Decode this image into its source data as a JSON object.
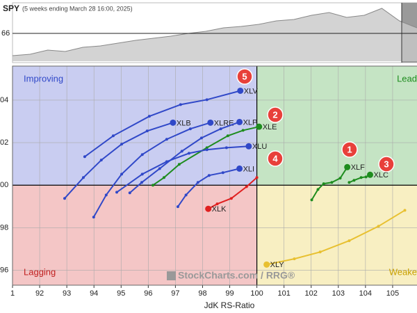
{
  "chart_data": [
    {
      "type": "area",
      "title": "SPY",
      "subtitle": "(5 weeks ending March 28 16:00, 2025)",
      "values": [
        550,
        551,
        554,
        553,
        556,
        557,
        559,
        561,
        562.5,
        564,
        566,
        567.5,
        570,
        571,
        572.5,
        575,
        576,
        579,
        581,
        577.5,
        579,
        584,
        575,
        570
      ],
      "color": "#c8c8c8",
      "ylim": [
        546,
        586
      ],
      "yticks": [
        {
          "value": 566,
          "label": "66"
        }
      ]
    },
    {
      "type": "rrg",
      "xlabel": "JdK RS-Ratio",
      "quadrants": [
        "Improving",
        "Lead",
        "Lagging",
        "Weake"
      ],
      "watermark": "StockCharts.com / RRG®",
      "annotations": [
        "5",
        "2",
        "4",
        "1",
        "3"
      ],
      "xlim": [
        91,
        106
      ],
      "ylim": [
        95.3,
        105.6
      ],
      "xticks": [
        {
          "value": 91,
          "label": "1"
        },
        92,
        93,
        94,
        95,
        96,
        97,
        98,
        99,
        100,
        101,
        102,
        103,
        104,
        105,
        {
          "value": 106,
          "label": "1"
        }
      ],
      "yticks": [
        96,
        98,
        {
          "value": 100,
          "label": "00"
        },
        {
          "value": 102,
          "label": "02"
        },
        {
          "value": 104,
          "label": "04"
        }
      ],
      "grid": true,
      "series": [
        {
          "name": "XLV",
          "color": "#3048c8",
          "x": [
            93.66,
            94.71,
            96.04,
            97.19,
            98.16,
            99.39
          ],
          "values": [
            101.34,
            102.32,
            103.24,
            103.79,
            104.02,
            104.44
          ]
        },
        {
          "name": "XLB",
          "color": "#3048c8",
          "x": [
            92.92,
            93.61,
            94.27,
            95.02,
            95.96,
            96.91
          ],
          "values": [
            99.38,
            100.36,
            101.18,
            101.93,
            102.55,
            102.94
          ]
        },
        {
          "name": "XLRE",
          "color": "#3048c8",
          "x": [
            93.99,
            94.45,
            95.02,
            95.78,
            96.68,
            97.55,
            98.29
          ],
          "values": [
            98.5,
            99.54,
            100.52,
            101.44,
            102.16,
            102.65,
            102.94
          ]
        },
        {
          "name": "XLP",
          "color": "#3048c8",
          "x": [
            95.32,
            95.76,
            96.42,
            97.24,
            97.96,
            98.67,
            99.36
          ],
          "values": [
            99.64,
            100.13,
            100.78,
            101.6,
            102.22,
            102.65,
            102.97
          ]
        },
        {
          "name": "XLE",
          "color": "#1e8c1e",
          "x": [
            96.17,
            96.58,
            97.14,
            98.16,
            98.93,
            99.49,
            100.08
          ],
          "values": [
            100,
            100.36,
            100.98,
            101.76,
            102.32,
            102.58,
            102.75
          ]
        },
        {
          "name": "XLU",
          "color": "#3048c8",
          "x": [
            94.84,
            95.78,
            96.68,
            97.5,
            98.16,
            98.88,
            99.7
          ],
          "values": [
            99.67,
            100.52,
            101.11,
            101.5,
            101.67,
            101.76,
            101.83
          ]
        },
        {
          "name": "XLI",
          "color": "#3048c8",
          "x": [
            97.09,
            97.39,
            97.83,
            98.24,
            98.75,
            99.36
          ],
          "values": [
            98.99,
            99.54,
            100.13,
            100.46,
            100.59,
            100.78
          ]
        },
        {
          "name": "XLK",
          "color": "#e02020",
          "x": [
            100.0,
            99.62,
            99.06,
            98.54,
            98.21
          ],
          "values": [
            100.36,
            99.93,
            99.38,
            99.12,
            98.89
          ]
        },
        {
          "name": "XLF",
          "color": "#1e8c1e",
          "x": [
            102.02,
            102.25,
            102.46,
            102.76,
            103.07,
            103.33
          ],
          "values": [
            99.31,
            99.8,
            100.07,
            100.13,
            100.33,
            100.85
          ]
        },
        {
          "name": "XLC",
          "color": "#1e8c1e",
          "x": [
            103.4,
            103.58,
            103.84,
            104.02,
            104.17
          ],
          "values": [
            100.13,
            100.23,
            100.36,
            100.39,
            100.49
          ]
        },
        {
          "name": "XLY",
          "color": "#e8c030",
          "x": [
            105.45,
            104.48,
            103.4,
            102.33,
            101.38,
            100.36
          ],
          "values": [
            98.82,
            98.07,
            97.39,
            96.86,
            96.54,
            96.27
          ]
        }
      ]
    }
  ]
}
